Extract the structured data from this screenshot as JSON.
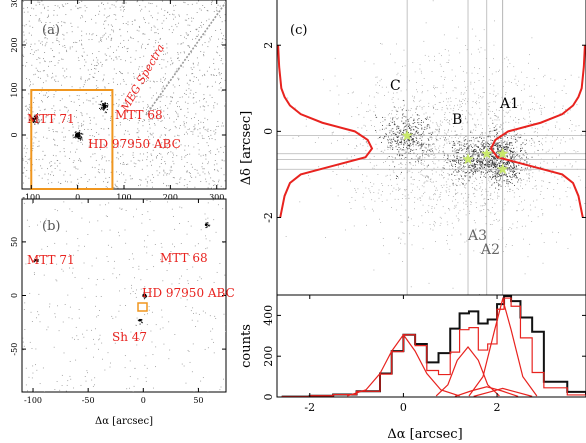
{
  "colors": {
    "annotation": "#e8231f",
    "box": "#f0961e",
    "histogram": "#e8231f",
    "counts_line": "#111111",
    "star": "#c8e86a",
    "frame": "#000000",
    "guide": "#b5b5b5"
  },
  "chart_data": [
    {
      "panel": "a",
      "type": "scatter",
      "panel_label": "(a)",
      "xlim": [
        -120,
        320
      ],
      "ylim": [
        -120,
        300
      ],
      "x_ticks": [
        "-100",
        "0",
        "100",
        "200",
        "300"
      ],
      "y_ticks": [
        "0",
        "100",
        "200",
        "300"
      ],
      "box": {
        "x": [
          -100,
          75
        ],
        "y": [
          -120,
          100
        ]
      },
      "sources": [
        {
          "name": "MTT 71",
          "x": -95,
          "y": 35
        },
        {
          "name": "MTT 68",
          "x": 57,
          "y": 65
        },
        {
          "name": "HD 97950 ABC",
          "x": 0,
          "y": 0
        }
      ],
      "annotations": [
        "MTT 71",
        "MTT 68",
        "HD 97950 ABC",
        "MEG Spectra"
      ]
    },
    {
      "panel": "b",
      "type": "scatter",
      "panel_label": "(b)",
      "xlabel": "Δα [arcsec]",
      "xlim": [
        -110,
        75
      ],
      "ylim": [
        -90,
        90
      ],
      "x_ticks": [
        "-100",
        "-50",
        "0",
        "50"
      ],
      "y_ticks": [
        "-50",
        "0",
        "50"
      ],
      "sources": [
        {
          "name": "MTT 68",
          "x": 57,
          "y": 66
        },
        {
          "name": "MTT 71",
          "x": -97,
          "y": 33
        },
        {
          "name": "HD 97950 ABC",
          "x": 1,
          "y": 0
        },
        {
          "name": "Sh 47",
          "x": -3,
          "y": -23
        }
      ],
      "annotations": [
        "MTT 68",
        "MTT 71",
        "HD 97950 ABC",
        "Sh 47"
      ]
    },
    {
      "panel": "c",
      "type": "scatter",
      "panel_label": "(c)",
      "ylabel": "Δδ [arcsec]",
      "xlim": [
        -2.7,
        3.9
      ],
      "ylim": [
        -3.8,
        3.05
      ],
      "y_ticks": [
        "-2",
        "0",
        "2"
      ],
      "sources": [
        {
          "name": "C",
          "x": 0.08,
          "y": -0.1
        },
        {
          "name": "B",
          "x": 1.38,
          "y": -0.65
        },
        {
          "name": "A3",
          "x": 1.78,
          "y": -0.52
        },
        {
          "name": "A1",
          "x": 2.12,
          "y": -0.52
        },
        {
          "name": "A2",
          "x": 2.12,
          "y": -0.88
        }
      ],
      "labels": [
        "C",
        "B",
        "A1",
        "A3",
        "A2"
      ],
      "y_profile": {
        "y": [
          -2.0,
          -1.5,
          -1.2,
          -1.0,
          -0.8,
          -0.6,
          -0.4,
          -0.2,
          0.0,
          0.2,
          0.4,
          0.6,
          0.8,
          1.0,
          1.5,
          2.0
        ],
        "counts": [
          3,
          7,
          12,
          22,
          52,
          82,
          88,
          84,
          72,
          42,
          22,
          12,
          7,
          4,
          2,
          1
        ]
      }
    },
    {
      "panel": "d",
      "type": "line",
      "xlabel": "Δα [arcsec]",
      "ylabel": "counts",
      "xlim": [
        -2.7,
        3.9
      ],
      "ylim": [
        0,
        500
      ],
      "x_ticks": [
        "-2",
        "0",
        "2"
      ],
      "y_ticks": [
        "0",
        "200",
        "400"
      ],
      "series": [
        {
          "x": [
            -2.6,
            -2.0,
            -1.5,
            -1.0,
            -0.5,
            -0.25,
            0.0,
            0.25,
            0.5,
            0.75,
            1.0,
            1.2,
            1.4,
            1.6,
            1.8,
            2.0,
            2.15,
            2.3,
            2.5,
            2.75,
            3.0,
            3.5,
            3.9
          ],
          "values": [
            2,
            6,
            12,
            28,
            115,
            225,
            305,
            260,
            170,
            215,
            335,
            410,
            420,
            360,
            380,
            455,
            495,
            470,
            390,
            320,
            75,
            25,
            8
          ]
        },
        {
          "x": [
            -2.6,
            -2.0,
            -1.5,
            -1.0,
            -0.5,
            -0.25,
            0.0,
            0.25,
            0.5,
            0.75,
            1.0,
            1.2,
            1.4,
            1.6,
            1.8,
            2.0,
            2.15,
            2.3,
            2.5,
            2.75,
            3.0,
            3.5,
            3.9
          ],
          "values": [
            2,
            6,
            12,
            28,
            112,
            222,
            305,
            252,
            130,
            110,
            220,
            330,
            340,
            230,
            260,
            430,
            485,
            445,
            290,
            120,
            45,
            10,
            2
          ]
        },
        {
          "x": [
            -1.2,
            -0.8,
            -0.5,
            -0.25,
            0.0,
            0.25,
            0.5,
            0.8,
            1.2
          ],
          "values": [
            5,
            35,
            115,
            225,
            305,
            225,
            115,
            35,
            5
          ]
        },
        {
          "x": [
            0.7,
            0.95,
            1.15,
            1.38,
            1.6,
            1.8,
            2.05
          ],
          "values": [
            5,
            60,
            180,
            245,
            180,
            60,
            5
          ]
        },
        {
          "x": [
            1.1,
            1.45,
            1.78,
            2.1,
            2.45
          ],
          "values": [
            3,
            30,
            50,
            30,
            3
          ]
        },
        {
          "x": [
            1.4,
            1.7,
            1.95,
            2.12,
            2.3,
            2.55,
            2.85
          ],
          "values": [
            5,
            100,
            330,
            480,
            330,
            100,
            5
          ]
        },
        {
          "x": [
            1.5,
            1.85,
            2.12,
            2.4,
            2.75
          ],
          "values": [
            3,
            25,
            42,
            25,
            3
          ]
        }
      ]
    }
  ]
}
